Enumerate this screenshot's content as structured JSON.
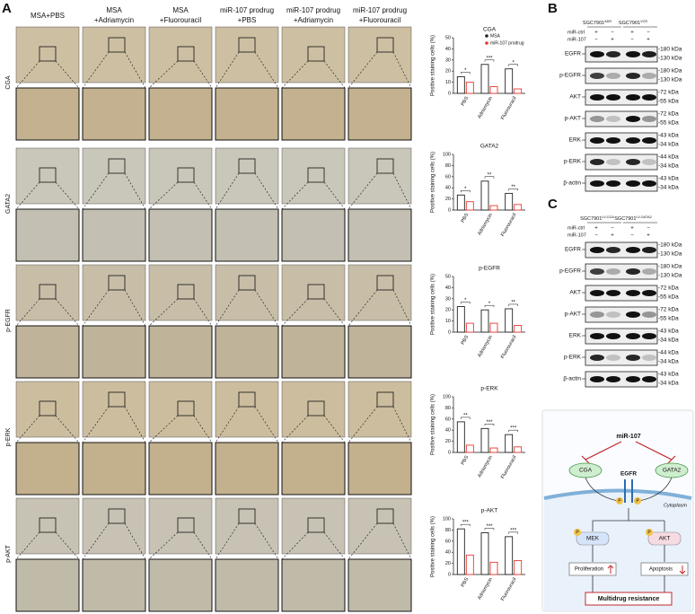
{
  "panels": {
    "A": {
      "label": "A",
      "columns": [
        [
          "MSA+PBS"
        ],
        [
          "MSA",
          "+Adriamycin"
        ],
        [
          "MSA",
          "+Fluorouracil"
        ],
        [
          "miR-107 prodrug",
          "+PBS"
        ],
        [
          "miR-107 prodrug",
          "+Adriamycin"
        ],
        [
          "miR-107 prodrug",
          "+Fluorouracil"
        ]
      ],
      "rows": [
        "CGA",
        "GATA2",
        "p-EGFR",
        "p-ERK",
        "p-AKT"
      ],
      "legend": [
        {
          "name": "MSA",
          "color": "#222222"
        },
        {
          "name": "miR-107 prodrug",
          "color": "#e8392f"
        }
      ],
      "charts": [
        {
          "type": "bar",
          "title": "CGA",
          "ylabel": "Positive staining cells (%)",
          "categories": [
            "PBS",
            "Adriamycin",
            "Fluorouracil"
          ],
          "series": [
            {
              "values": [
                15,
                26,
                22
              ]
            },
            {
              "values": [
                10,
                6,
                4
              ]
            }
          ],
          "significance": [
            "*",
            "***",
            "*"
          ],
          "ylim": [
            0,
            50
          ],
          "yticks": [
            0,
            10,
            20,
            30,
            40,
            50
          ]
        },
        {
          "type": "bar",
          "title": "GATA2",
          "ylabel": "Positive staining cells (%)",
          "categories": [
            "PBS",
            "Adriamycin",
            "Fluorouracil"
          ],
          "series": [
            {
              "values": [
                27,
                52,
                30
              ]
            },
            {
              "values": [
                15,
                8,
                10
              ]
            }
          ],
          "significance": [
            "*",
            "**",
            "**"
          ],
          "ylim": [
            0,
            100
          ],
          "yticks": [
            0,
            20,
            40,
            60,
            80,
            100
          ]
        },
        {
          "type": "bar",
          "title": "p-EGFR",
          "ylabel": "Positive staining cells (%)",
          "categories": [
            "PBS",
            "Adriamycin",
            "Fluorouracil"
          ],
          "series": [
            {
              "values": [
                23,
                20,
                21
              ]
            },
            {
              "values": [
                8,
                8,
                6
              ]
            }
          ],
          "significance": [
            "*",
            "*",
            "**"
          ],
          "ylim": [
            0,
            50
          ],
          "yticks": [
            0,
            10,
            20,
            30,
            40,
            50
          ]
        },
        {
          "type": "bar",
          "title": "p-ERK",
          "ylabel": "Positive staining cells (%)",
          "categories": [
            "PBS",
            "Adriamycin",
            "Fluorouracil"
          ],
          "series": [
            {
              "values": [
                55,
                43,
                32
              ]
            },
            {
              "values": [
                13,
                8,
                10
              ]
            }
          ],
          "significance": [
            "**",
            "***",
            "***"
          ],
          "ylim": [
            0,
            100
          ],
          "yticks": [
            0,
            20,
            40,
            60,
            80,
            100
          ]
        },
        {
          "type": "bar",
          "title": "p-AKT",
          "ylabel": "Positive staining cells (%)",
          "categories": [
            "PBS",
            "Adriamycin",
            "Fluorouracil"
          ],
          "series": [
            {
              "values": [
                82,
                75,
                68
              ]
            },
            {
              "values": [
                35,
                22,
                25
              ]
            }
          ],
          "significance": [
            "***",
            "***",
            "***"
          ],
          "ylim": [
            0,
            100
          ],
          "yticks": [
            0,
            20,
            40,
            60,
            80,
            100
          ]
        }
      ]
    },
    "B": {
      "label": "B",
      "groups": [
        {
          "name": "SGC7901",
          "sup": "ADR"
        },
        {
          "name": "SGC7901",
          "sup": "VCR"
        }
      ],
      "conditions": [
        {
          "name": "miR-ctrl",
          "signs": [
            "+",
            "−",
            "+",
            "−"
          ]
        },
        {
          "name": "miR-107",
          "signs": [
            "−",
            "+",
            "−",
            "+"
          ]
        }
      ],
      "blots": [
        {
          "name": "EGFR",
          "markers": [
            "-180 kDa",
            "-130 kDa"
          ]
        },
        {
          "name": "p-EGFR",
          "markers": [
            "-180 kDa",
            "-130 kDa"
          ]
        },
        {
          "name": "AKT",
          "markers": [
            "-72 kDa",
            "-55 kDa"
          ]
        },
        {
          "name": "p-AKT",
          "markers": [
            "-72 kDa",
            "-55 kDa"
          ]
        },
        {
          "name": "ERK",
          "markers": [
            "-43 kDa",
            "-34 kDa"
          ]
        },
        {
          "name": "p-ERK",
          "markers": [
            "-44 kDa",
            "-34 kDa"
          ]
        },
        {
          "name": "β-actin",
          "markers": [
            "-43 kDa",
            "-34 kDa"
          ]
        }
      ]
    },
    "C": {
      "label": "C",
      "groups": [
        {
          "name": "SGC7901",
          "sup": "LV-CGA"
        },
        {
          "name": "SGC7901",
          "sup": "LV-GATA2"
        }
      ],
      "conditions": [
        {
          "name": "miR-ctrl",
          "signs": [
            "+",
            "−",
            "+",
            "−"
          ]
        },
        {
          "name": "miR-107",
          "signs": [
            "−",
            "+",
            "−",
            "+"
          ]
        }
      ],
      "blots": [
        {
          "name": "EGFR",
          "markers": [
            "-180 kDa",
            "-130 kDa"
          ]
        },
        {
          "name": "p-EGFR",
          "markers": [
            "-180 kDa",
            "-130 kDa"
          ]
        },
        {
          "name": "AKT",
          "markers": [
            "-72 kDa",
            "-55 kDa"
          ]
        },
        {
          "name": "p-AKT",
          "markers": [
            "-72 kDa",
            "-55 kDa"
          ]
        },
        {
          "name": "ERK",
          "markers": [
            "-43 kDa",
            "-34 kDa"
          ]
        },
        {
          "name": "p-ERK",
          "markers": [
            "-44 kDa",
            "-34 kDa"
          ]
        },
        {
          "name": "β-actin",
          "markers": [
            "-43 kDa",
            "-34 kDa"
          ]
        }
      ]
    },
    "D": {
      "label": "D",
      "regulator": "miR-107",
      "targets": [
        "CGA",
        "GATA2"
      ],
      "receptor": "EGFR",
      "phospho": "P",
      "compartment": "Cytoplasm",
      "kinases": [
        "MEK",
        "AKT"
      ],
      "outcomes": [
        "Proliferation",
        "Apoptosis"
      ],
      "result": "Multidrug resistance"
    }
  }
}
